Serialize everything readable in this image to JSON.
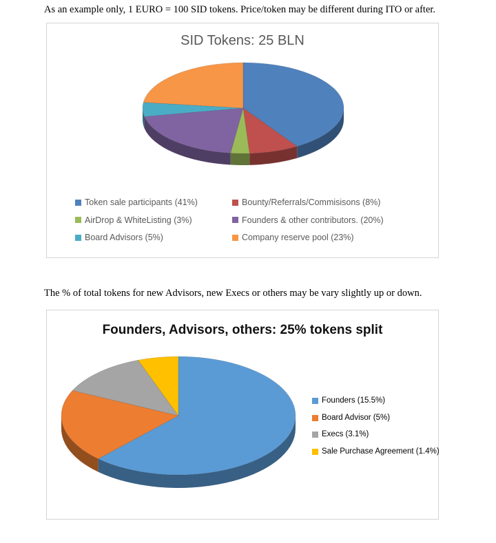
{
  "page": {
    "note_top": "As an example only, 1 EURO = 100 SID tokens. Price/token may be different during ITO or after.",
    "note_middle": "The % of total tokens for new Advisors, new Execs or others may be vary slightly up or down."
  },
  "chart_data": [
    {
      "type": "pie",
      "style": "3d",
      "title": "SID Tokens: 25 BLN",
      "total_label": "25 BLN",
      "labels": [
        "Token sale participants (41%)",
        "Bounty/Referrals/Commisisons (8%)",
        "AirDrop & WhiteListing (3%)",
        "Founders & other contributors. (20%)",
        "Board Advisors (5%)",
        "Company reserve pool (23%)"
      ],
      "values": [
        41,
        8,
        3,
        20,
        5,
        23
      ],
      "colors": [
        "#4F81BD",
        "#C0504D",
        "#9BBB59",
        "#8064A2",
        "#4BACC6",
        "#F79646"
      ],
      "legend_position": "bottom",
      "title_color": "#595959"
    },
    {
      "type": "pie",
      "style": "3d",
      "title": "Founders, Advisors, others: 25% tokens split",
      "labels": [
        "Founders (15.5%)",
        "Board Advisor (5%)",
        "Execs (3.1%)",
        "Sale Purchase Agreement (1.4%)"
      ],
      "values": [
        15.5,
        5,
        3.1,
        1.4
      ],
      "colors": [
        "#5B9BD5",
        "#ED7D31",
        "#A5A5A5",
        "#FFC000"
      ],
      "legend_position": "right",
      "title_color": "#111111"
    }
  ]
}
